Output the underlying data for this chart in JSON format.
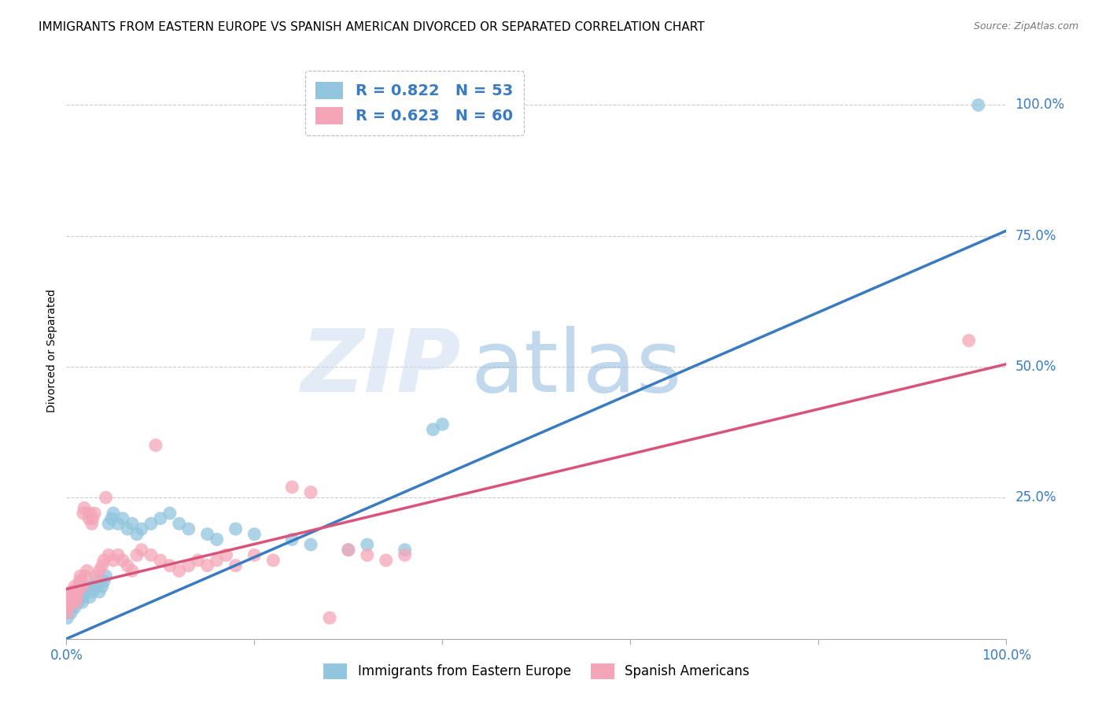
{
  "title": "IMMIGRANTS FROM EASTERN EUROPE VS SPANISH AMERICAN DIVORCED OR SEPARATED CORRELATION CHART",
  "source": "Source: ZipAtlas.com",
  "ylabel": "Divorced or Separated",
  "xmin": 0.0,
  "xmax": 1.0,
  "ymin": -0.02,
  "ymax": 1.08,
  "ytick_labels": [
    "25.0%",
    "50.0%",
    "75.0%",
    "100.0%"
  ],
  "ytick_positions": [
    0.25,
    0.5,
    0.75,
    1.0
  ],
  "blue_color": "#92c5de",
  "pink_color": "#f4a6b8",
  "blue_line_color": "#3a7abf",
  "pink_line_color": "#d9547a",
  "blue_scatter": [
    [
      0.001,
      0.02
    ],
    [
      0.002,
      0.03
    ],
    [
      0.003,
      0.04
    ],
    [
      0.004,
      0.05
    ],
    [
      0.005,
      0.03
    ],
    [
      0.006,
      0.04
    ],
    [
      0.007,
      0.05
    ],
    [
      0.008,
      0.06
    ],
    [
      0.009,
      0.04
    ],
    [
      0.01,
      0.05
    ],
    [
      0.011,
      0.06
    ],
    [
      0.012,
      0.05
    ],
    [
      0.013,
      0.06
    ],
    [
      0.014,
      0.07
    ],
    [
      0.015,
      0.08
    ],
    [
      0.016,
      0.07
    ],
    [
      0.017,
      0.05
    ],
    [
      0.018,
      0.06
    ],
    [
      0.02,
      0.07
    ],
    [
      0.022,
      0.08
    ],
    [
      0.025,
      0.06
    ],
    [
      0.028,
      0.07
    ],
    [
      0.03,
      0.08
    ],
    [
      0.032,
      0.09
    ],
    [
      0.035,
      0.07
    ],
    [
      0.038,
      0.08
    ],
    [
      0.04,
      0.09
    ],
    [
      0.042,
      0.1
    ],
    [
      0.045,
      0.2
    ],
    [
      0.048,
      0.21
    ],
    [
      0.05,
      0.22
    ],
    [
      0.055,
      0.2
    ],
    [
      0.06,
      0.21
    ],
    [
      0.065,
      0.19
    ],
    [
      0.07,
      0.2
    ],
    [
      0.075,
      0.18
    ],
    [
      0.08,
      0.19
    ],
    [
      0.09,
      0.2
    ],
    [
      0.1,
      0.21
    ],
    [
      0.11,
      0.22
    ],
    [
      0.12,
      0.2
    ],
    [
      0.13,
      0.19
    ],
    [
      0.15,
      0.18
    ],
    [
      0.16,
      0.17
    ],
    [
      0.18,
      0.19
    ],
    [
      0.2,
      0.18
    ],
    [
      0.24,
      0.17
    ],
    [
      0.26,
      0.16
    ],
    [
      0.3,
      0.15
    ],
    [
      0.32,
      0.16
    ],
    [
      0.36,
      0.15
    ],
    [
      0.39,
      0.38
    ],
    [
      0.4,
      0.39
    ],
    [
      0.97,
      1.0
    ]
  ],
  "pink_scatter": [
    [
      0.001,
      0.03
    ],
    [
      0.002,
      0.04
    ],
    [
      0.003,
      0.05
    ],
    [
      0.004,
      0.06
    ],
    [
      0.005,
      0.07
    ],
    [
      0.006,
      0.05
    ],
    [
      0.007,
      0.06
    ],
    [
      0.008,
      0.07
    ],
    [
      0.009,
      0.08
    ],
    [
      0.01,
      0.05
    ],
    [
      0.011,
      0.06
    ],
    [
      0.012,
      0.07
    ],
    [
      0.013,
      0.08
    ],
    [
      0.014,
      0.09
    ],
    [
      0.015,
      0.1
    ],
    [
      0.016,
      0.09
    ],
    [
      0.017,
      0.08
    ],
    [
      0.018,
      0.22
    ],
    [
      0.019,
      0.23
    ],
    [
      0.02,
      0.1
    ],
    [
      0.022,
      0.11
    ],
    [
      0.024,
      0.21
    ],
    [
      0.025,
      0.22
    ],
    [
      0.027,
      0.2
    ],
    [
      0.028,
      0.21
    ],
    [
      0.03,
      0.22
    ],
    [
      0.032,
      0.1
    ],
    [
      0.035,
      0.11
    ],
    [
      0.038,
      0.12
    ],
    [
      0.04,
      0.13
    ],
    [
      0.042,
      0.25
    ],
    [
      0.045,
      0.14
    ],
    [
      0.05,
      0.13
    ],
    [
      0.055,
      0.14
    ],
    [
      0.06,
      0.13
    ],
    [
      0.065,
      0.12
    ],
    [
      0.07,
      0.11
    ],
    [
      0.075,
      0.14
    ],
    [
      0.08,
      0.15
    ],
    [
      0.09,
      0.14
    ],
    [
      0.095,
      0.35
    ],
    [
      0.1,
      0.13
    ],
    [
      0.11,
      0.12
    ],
    [
      0.12,
      0.11
    ],
    [
      0.13,
      0.12
    ],
    [
      0.14,
      0.13
    ],
    [
      0.15,
      0.12
    ],
    [
      0.16,
      0.13
    ],
    [
      0.17,
      0.14
    ],
    [
      0.18,
      0.12
    ],
    [
      0.2,
      0.14
    ],
    [
      0.22,
      0.13
    ],
    [
      0.24,
      0.27
    ],
    [
      0.26,
      0.26
    ],
    [
      0.28,
      0.02
    ],
    [
      0.3,
      0.15
    ],
    [
      0.32,
      0.14
    ],
    [
      0.34,
      0.13
    ],
    [
      0.36,
      0.14
    ],
    [
      0.96,
      0.55
    ]
  ],
  "blue_line_x": [
    0.0,
    1.0
  ],
  "blue_line_y": [
    -0.02,
    0.76
  ],
  "pink_line_x": [
    0.0,
    1.0
  ],
  "pink_line_y": [
    0.075,
    0.505
  ],
  "background_color": "#ffffff",
  "grid_color": "#cccccc",
  "title_fontsize": 11,
  "tick_label_color": "#3a7abf",
  "right_label_color": "#3a7abf"
}
